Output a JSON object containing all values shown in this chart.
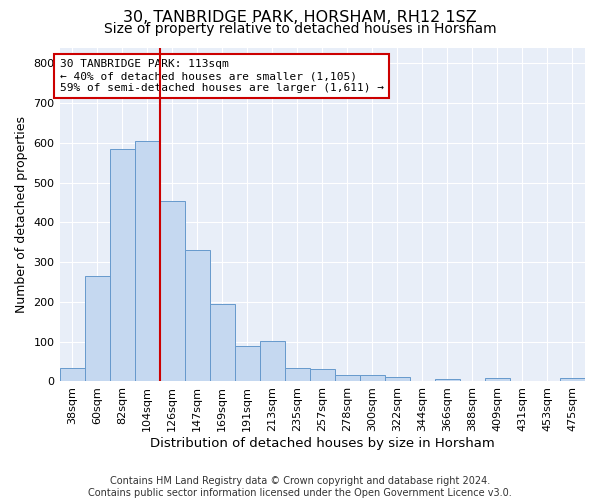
{
  "title": "30, TANBRIDGE PARK, HORSHAM, RH12 1SZ",
  "subtitle": "Size of property relative to detached houses in Horsham",
  "xlabel": "Distribution of detached houses by size in Horsham",
  "ylabel": "Number of detached properties",
  "footer": "Contains HM Land Registry data © Crown copyright and database right 2024.\nContains public sector information licensed under the Open Government Licence v3.0.",
  "bar_labels": [
    "38sqm",
    "60sqm",
    "82sqm",
    "104sqm",
    "126sqm",
    "147sqm",
    "169sqm",
    "191sqm",
    "213sqm",
    "235sqm",
    "257sqm",
    "278sqm",
    "300sqm",
    "322sqm",
    "344sqm",
    "366sqm",
    "388sqm",
    "409sqm",
    "431sqm",
    "453sqm",
    "475sqm"
  ],
  "bar_values": [
    35,
    265,
    585,
    605,
    455,
    330,
    195,
    90,
    103,
    35,
    32,
    17,
    17,
    12,
    0,
    7,
    0,
    8,
    0,
    0,
    8
  ],
  "bar_color": "#c5d8f0",
  "bar_edge_color": "#6699cc",
  "annotation_text": "30 TANBRIDGE PARK: 113sqm\n← 40% of detached houses are smaller (1,105)\n59% of semi-detached houses are larger (1,611) →",
  "vline_x": 3.5,
  "vline_color": "#cc0000",
  "annotation_box_color": "#cc0000",
  "background_color": "#e8eef8",
  "grid_color": "#ffffff",
  "ylim": [
    0,
    840
  ],
  "yticks": [
    0,
    100,
    200,
    300,
    400,
    500,
    600,
    700,
    800
  ],
  "title_fontsize": 11.5,
  "subtitle_fontsize": 10,
  "xlabel_fontsize": 9.5,
  "ylabel_fontsize": 9,
  "tick_fontsize": 8,
  "annot_fontsize": 8,
  "footer_fontsize": 7
}
